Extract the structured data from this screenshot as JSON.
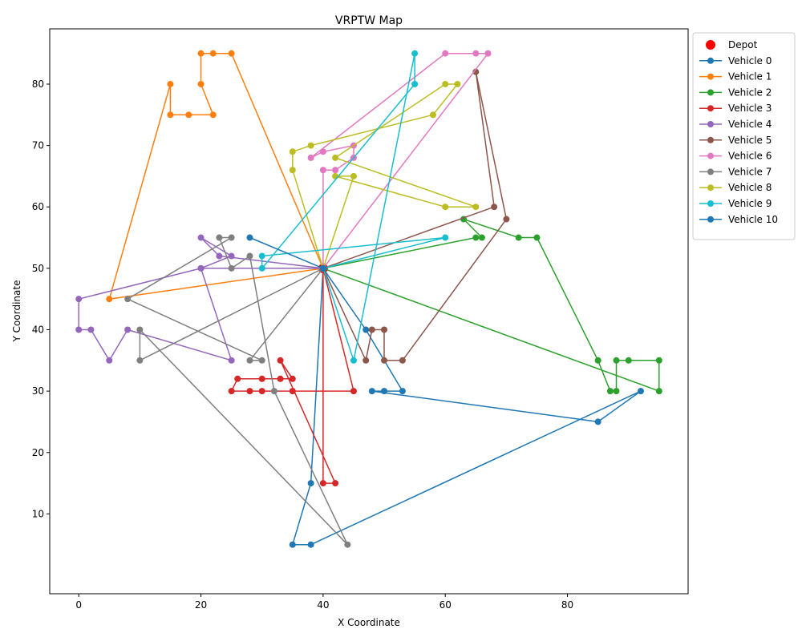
{
  "chart_data": {
    "type": "line",
    "title": "VRPTW Map",
    "xlabel": "X Coordinate",
    "ylabel": "Y Coordinate",
    "xlim": [
      -4.75,
      99.75
    ],
    "ylim": [
      -3.0,
      89.0
    ],
    "xticks": [
      0,
      20,
      40,
      60,
      80
    ],
    "yticks": [
      10,
      20,
      30,
      40,
      50,
      60,
      70,
      80
    ],
    "grid": false,
    "legend_position": "outside-top-right",
    "depot": {
      "name": "Depot",
      "x": 40,
      "y": 50,
      "color": "#ff0000"
    },
    "series": [
      {
        "name": "Vehicle 0",
        "color": "#1f77b4",
        "points": [
          [
            40,
            50
          ],
          [
            47,
            40
          ],
          [
            53,
            30
          ],
          [
            50,
            30
          ],
          [
            48,
            30
          ],
          [
            85,
            25
          ],
          [
            92,
            30
          ],
          [
            38,
            5
          ],
          [
            35,
            5
          ],
          [
            38,
            15
          ],
          [
            40,
            50
          ]
        ]
      },
      {
        "name": "Vehicle 1",
        "color": "#ff7f0e",
        "points": [
          [
            40,
            50
          ],
          [
            25,
            85
          ],
          [
            22,
            85
          ],
          [
            20,
            85
          ],
          [
            20,
            80
          ],
          [
            22,
            75
          ],
          [
            18,
            75
          ],
          [
            15,
            75
          ],
          [
            15,
            80
          ],
          [
            5,
            45
          ],
          [
            40,
            50
          ]
        ]
      },
      {
        "name": "Vehicle 2",
        "color": "#2ca02c",
        "points": [
          [
            40,
            50
          ],
          [
            65,
            55
          ],
          [
            66,
            55
          ],
          [
            63,
            58
          ],
          [
            72,
            55
          ],
          [
            75,
            55
          ],
          [
            85,
            35
          ],
          [
            87,
            30
          ],
          [
            88,
            30
          ],
          [
            88,
            35
          ],
          [
            90,
            35
          ],
          [
            95,
            35
          ],
          [
            95,
            30
          ],
          [
            40,
            50
          ]
        ]
      },
      {
        "name": "Vehicle 3",
        "color": "#d62728",
        "points": [
          [
            40,
            50
          ],
          [
            40,
            15
          ],
          [
            42,
            15
          ],
          [
            33,
            35
          ],
          [
            35,
            32
          ],
          [
            33,
            32
          ],
          [
            30,
            32
          ],
          [
            26,
            32
          ],
          [
            25,
            30
          ],
          [
            28,
            30
          ],
          [
            30,
            30
          ],
          [
            35,
            30
          ],
          [
            45,
            30
          ],
          [
            40,
            50
          ]
        ]
      },
      {
        "name": "Vehicle 4",
        "color": "#9467bd",
        "points": [
          [
            40,
            50
          ],
          [
            23,
            52
          ],
          [
            20,
            55
          ],
          [
            25,
            52
          ],
          [
            20,
            50
          ],
          [
            25,
            35
          ],
          [
            8,
            40
          ],
          [
            5,
            35
          ],
          [
            2,
            40
          ],
          [
            0,
            40
          ],
          [
            0,
            45
          ],
          [
            20,
            50
          ],
          [
            40,
            50
          ]
        ]
      },
      {
        "name": "Vehicle 5",
        "color": "#8c564b",
        "points": [
          [
            40,
            50
          ],
          [
            68,
            60
          ],
          [
            65,
            82
          ],
          [
            70,
            58
          ],
          [
            53,
            35
          ],
          [
            50,
            35
          ],
          [
            50,
            40
          ],
          [
            48,
            40
          ],
          [
            47,
            35
          ],
          [
            40,
            50
          ]
        ]
      },
      {
        "name": "Vehicle 6",
        "color": "#e377c2",
        "points": [
          [
            40,
            50
          ],
          [
            40,
            66
          ],
          [
            42,
            66
          ],
          [
            45,
            68
          ],
          [
            45,
            70
          ],
          [
            40,
            69
          ],
          [
            38,
            68
          ],
          [
            60,
            85
          ],
          [
            65,
            85
          ],
          [
            67,
            85
          ],
          [
            40,
            50
          ]
        ]
      },
      {
        "name": "Vehicle 7",
        "color": "#7f7f7f",
        "points": [
          [
            40,
            50
          ],
          [
            28,
            35
          ],
          [
            30,
            35
          ],
          [
            8,
            45
          ],
          [
            25,
            55
          ],
          [
            23,
            55
          ],
          [
            25,
            50
          ],
          [
            28,
            52
          ],
          [
            32,
            30
          ],
          [
            44,
            5
          ],
          [
            10,
            40
          ],
          [
            10,
            35
          ],
          [
            40,
            50
          ]
        ]
      },
      {
        "name": "Vehicle 8",
        "color": "#bcbd22",
        "points": [
          [
            40,
            50
          ],
          [
            35,
            66
          ],
          [
            35,
            69
          ],
          [
            38,
            70
          ],
          [
            58,
            75
          ],
          [
            62,
            80
          ],
          [
            60,
            80
          ],
          [
            42,
            68
          ],
          [
            65,
            60
          ],
          [
            60,
            60
          ],
          [
            42,
            65
          ],
          [
            45,
            65
          ],
          [
            40,
            50
          ]
        ]
      },
      {
        "name": "Vehicle 9",
        "color": "#17becf",
        "points": [
          [
            40,
            50
          ],
          [
            45,
            35
          ],
          [
            55,
            85
          ],
          [
            55,
            80
          ],
          [
            30,
            50
          ],
          [
            30,
            52
          ],
          [
            60,
            55
          ],
          [
            40,
            50
          ]
        ]
      },
      {
        "name": "Vehicle 10",
        "color": "#1f77b4",
        "points": [
          [
            40,
            50
          ],
          [
            28,
            55
          ],
          [
            40,
            50
          ]
        ]
      }
    ]
  }
}
